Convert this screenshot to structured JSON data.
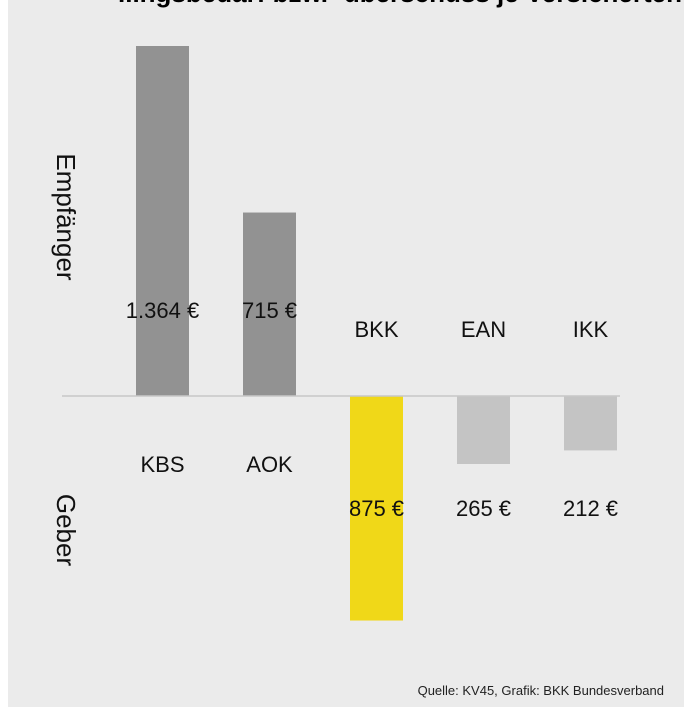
{
  "title": "...ngsbedarf bzw. -überschuss je Versicherten",
  "source": "Quelle: KV45, Grafik: BKK Bundesverband",
  "group_labels": {
    "top": "Empfänger",
    "bottom": "Geber"
  },
  "chart_data": {
    "type": "bar",
    "categories": [
      "KBS",
      "AOK",
      "BKK",
      "EAN",
      "IKK"
    ],
    "values": [
      1364,
      715,
      -875,
      -265,
      -212
    ],
    "value_labels": [
      "1.364 €",
      "715 €",
      "875 €",
      "265 €",
      "212 €"
    ],
    "colors": [
      "#929292",
      "#929292",
      "#f0d818",
      "#c4c4c4",
      "#c4c4c4"
    ],
    "ylim": [
      -1000,
      1400
    ],
    "grid": false,
    "axis_color": "#c8c8c8"
  }
}
